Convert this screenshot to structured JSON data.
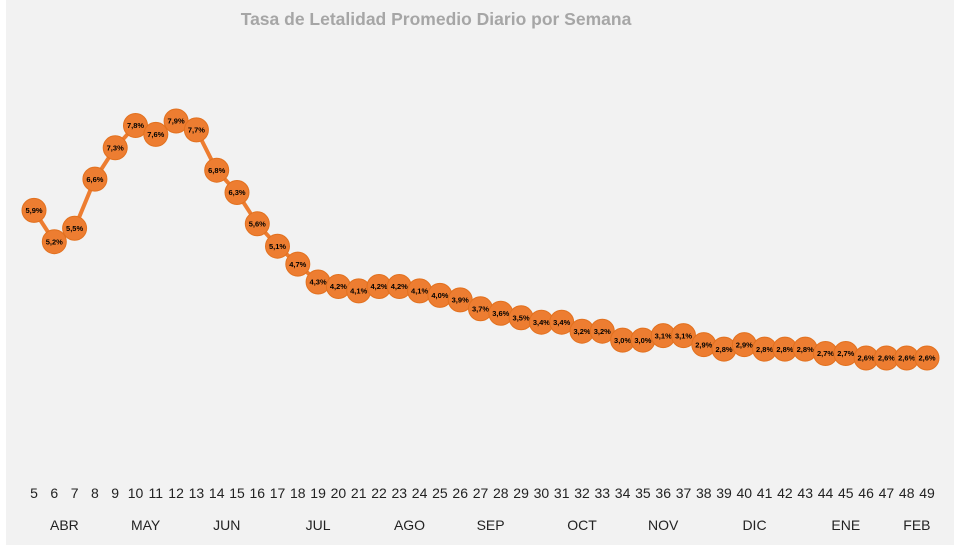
{
  "chart_data": {
    "type": "line",
    "title": "Tasa de Letalidad Promedio Diario por Semana",
    "xlabel": "",
    "ylabel": "",
    "ylim": [
      0,
      10
    ],
    "grid": false,
    "legend": "none",
    "marker": "circle",
    "color": "#ED7D31",
    "x": [
      5,
      6,
      7,
      8,
      9,
      10,
      11,
      12,
      13,
      14,
      15,
      16,
      17,
      18,
      19,
      20,
      21,
      22,
      23,
      24,
      25,
      26,
      27,
      28,
      29,
      30,
      31,
      32,
      33,
      34,
      35,
      36,
      37,
      38,
      39,
      40,
      41,
      42,
      43,
      44,
      45,
      46,
      47,
      48,
      49
    ],
    "values": [
      5.9,
      5.2,
      5.5,
      6.6,
      7.3,
      7.8,
      7.6,
      7.9,
      7.7,
      6.8,
      6.3,
      5.6,
      5.1,
      4.7,
      4.3,
      4.2,
      4.1,
      4.2,
      4.2,
      4.1,
      4.0,
      3.9,
      3.7,
      3.6,
      3.5,
      3.4,
      3.4,
      3.2,
      3.2,
      3.0,
      3.0,
      3.1,
      3.1,
      2.9,
      2.8,
      2.9,
      2.8,
      2.8,
      2.8,
      2.7,
      2.7,
      2.6,
      2.6,
      2.6,
      2.6
    ],
    "data_labels": [
      "5,9%",
      "5,2%",
      "5,5%",
      "6,6%",
      "7,3%",
      "7,8%",
      "7,6%",
      "7,9%",
      "7,7%",
      "6,8%",
      "6,3%",
      "5,6%",
      "5,1%",
      "4,7%",
      "4,3%",
      "4,2%",
      "4,1%",
      "4,2%",
      "4,2%",
      "4,1%",
      "4,0%",
      "3,9%",
      "3,7%",
      "3,6%",
      "3,5%",
      "3,4%",
      "3,4%",
      "3,2%",
      "3,2%",
      "3,0%",
      "3,0%",
      "3,1%",
      "3,1%",
      "2,9%",
      "2,8%",
      "2,9%",
      "2,8%",
      "2,8%",
      "2,8%",
      "2,7%",
      "2,7%",
      "2,6%",
      "2,6%",
      "2,6%",
      "2,6%"
    ],
    "months": [
      {
        "label": "ABR",
        "center_week": 6.5
      },
      {
        "label": "MAY",
        "center_week": 10.5
      },
      {
        "label": "JUN",
        "center_week": 14.5
      },
      {
        "label": "JUL",
        "center_week": 19
      },
      {
        "label": "AGO",
        "center_week": 23.5
      },
      {
        "label": "SEP",
        "center_week": 27.5
      },
      {
        "label": "OCT",
        "center_week": 32
      },
      {
        "label": "NOV",
        "center_week": 36
      },
      {
        "label": "DIC",
        "center_week": 40.5
      },
      {
        "label": "ENE",
        "center_week": 45
      },
      {
        "label": "FEB",
        "center_week": 48.5
      }
    ]
  }
}
